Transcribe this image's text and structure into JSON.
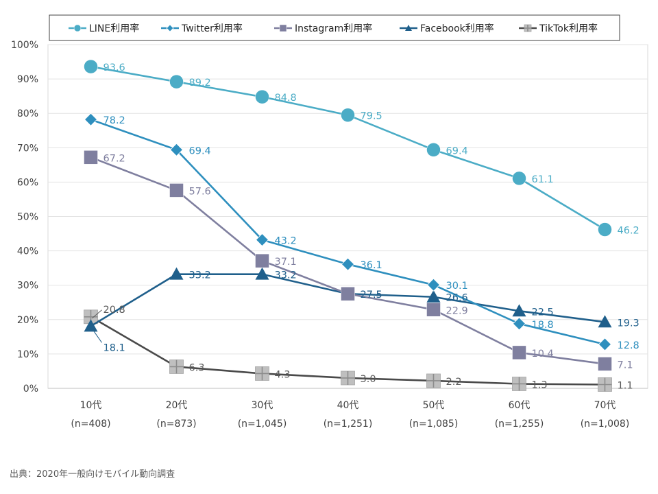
{
  "source": "出典：2020年一般向けモバイル動向調査",
  "chart_data": {
    "type": "line",
    "title": "",
    "xlabel": "",
    "ylabel": "",
    "ylim": [
      0,
      100
    ],
    "y_ticks": [
      "0%",
      "10%",
      "20%",
      "30%",
      "40%",
      "50%",
      "60%",
      "70%",
      "80%",
      "90%",
      "100%"
    ],
    "categories": [
      {
        "age": "10代",
        "n": "(n=408)"
      },
      {
        "age": "20代",
        "n": "(n=873)"
      },
      {
        "age": "30代",
        "n": "(n=1,045)"
      },
      {
        "age": "40代",
        "n": "(n=1,251)"
      },
      {
        "age": "50代",
        "n": "(n=1,085)"
      },
      {
        "age": "60代",
        "n": "(n=1,255)"
      },
      {
        "age": "70代",
        "n": "(n=1,008)"
      }
    ],
    "legend_position": "top",
    "series": [
      {
        "name": "LINE利用率",
        "color": "#4BACC6",
        "marker": "circle",
        "values": [
          93.6,
          89.2,
          84.8,
          79.5,
          69.4,
          61.1,
          46.2
        ],
        "labels": [
          "93.6",
          "89.2",
          "84.8",
          "79.5",
          "69.4",
          "61.1",
          "46.2"
        ]
      },
      {
        "name": "Twitter利用率",
        "color": "#2E8FBE",
        "marker": "diamond",
        "values": [
          78.2,
          69.4,
          43.2,
          36.1,
          30.1,
          18.8,
          12.8
        ],
        "labels": [
          "78.2",
          "69.4",
          "43.2",
          "36.1",
          "30.1",
          "18.8",
          "12.8"
        ]
      },
      {
        "name": "Instagram利用率",
        "color": "#7F7F9F",
        "marker": "square",
        "values": [
          67.2,
          57.6,
          37.1,
          27.5,
          22.9,
          10.4,
          7.1
        ],
        "labels": [
          "67.2",
          "57.6",
          "37.1",
          "27.5",
          "22.9",
          "10.4",
          "7.1"
        ]
      },
      {
        "name": "Facebook利用率",
        "color": "#1F5F8B",
        "marker": "triangle",
        "values": [
          18.1,
          33.2,
          33.2,
          27.5,
          26.6,
          22.5,
          19.3
        ],
        "labels": [
          "18.1",
          "33.2",
          "33.2",
          "27.5",
          "26.6",
          "22.5",
          "19.3"
        ]
      },
      {
        "name": "TikTok利用率",
        "color": "#4A4A4A",
        "marker_fill": "#BFBFBF",
        "marker": "plus-square",
        "values": [
          20.8,
          6.3,
          4.3,
          3.0,
          2.2,
          1.3,
          1.1
        ],
        "labels": [
          "20.8",
          "6.3",
          "4.3",
          "3.0",
          "2.2",
          "1.3",
          "1.1"
        ]
      }
    ]
  }
}
